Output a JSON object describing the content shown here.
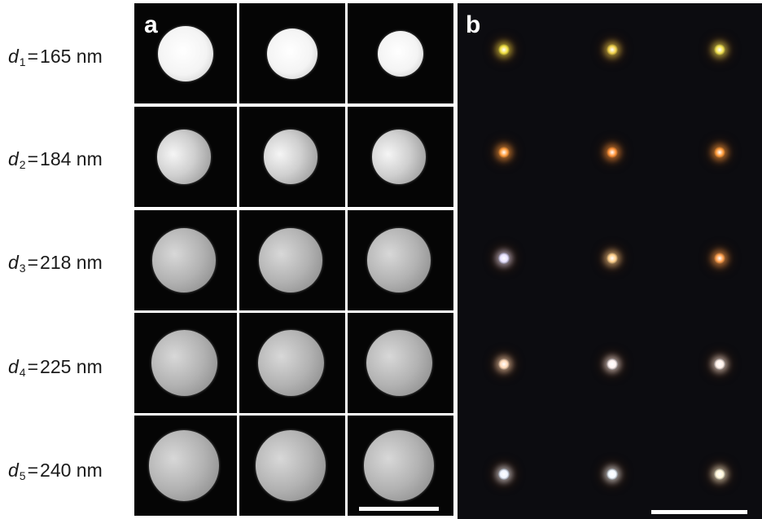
{
  "rows": [
    {
      "symbol": "d",
      "sub": "1",
      "eq": "=",
      "value": "165 nm",
      "diameter_nm": 165
    },
    {
      "symbol": "d",
      "sub": "2",
      "eq": "=",
      "value": "184 nm",
      "diameter_nm": 184
    },
    {
      "symbol": "d",
      "sub": "3",
      "eq": "=",
      "value": "218 nm",
      "diameter_nm": 218
    },
    {
      "symbol": "d",
      "sub": "4",
      "eq": "=",
      "value": "225 nm",
      "diameter_nm": 225
    },
    {
      "symbol": "d",
      "sub": "5",
      "eq": "=",
      "value": "240 nm",
      "diameter_nm": 240
    }
  ],
  "panel_a": {
    "label": "a"
  },
  "panel_b": {
    "label": "b",
    "spot_colors": [
      [
        "#f2e040",
        "#f4d34a",
        "#f3e24e"
      ],
      [
        "#ff9b3a",
        "#ff9236",
        "#ff9a38"
      ],
      [
        "#e9e2ff",
        "#ffcf8a",
        "#ff9e4a"
      ],
      [
        "#ffd9b8",
        "#fff2f0",
        "#fff0e8"
      ],
      [
        "#eef4ff",
        "#f2f8ff",
        "#fff6d8"
      ]
    ]
  }
}
